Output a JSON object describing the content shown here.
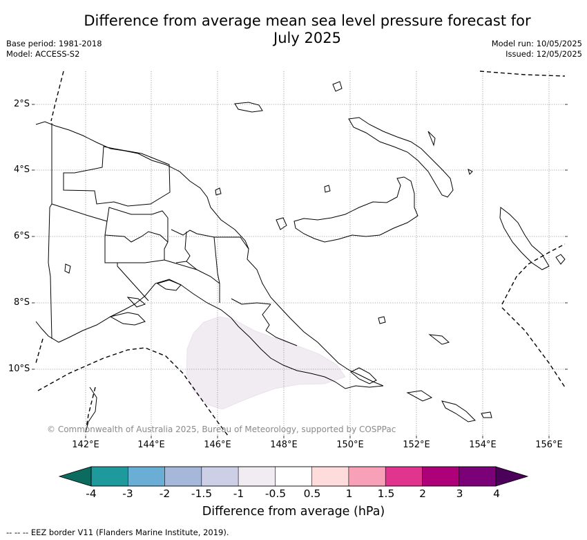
{
  "title": "Difference from average mean sea level pressure forecast for July 2025",
  "meta_left": {
    "base_period": "Base period: 1981-2018",
    "model": "Model: ACCESS-S2"
  },
  "meta_right": {
    "model_run": "Model run: 10/05/2025",
    "issued": "Issued: 12/05/2025"
  },
  "copyright": "© Commonwealth of Australia 2025, Bureau of Meteorology, supported by COSPPac",
  "map": {
    "lat_labels": [
      "2°S",
      "4°S",
      "6°S",
      "8°S",
      "10°S"
    ],
    "lon_labels": [
      "142°E",
      "144°E",
      "146°E",
      "148°E",
      "150°E",
      "152°E",
      "154°E",
      "156°E"
    ],
    "anomaly_region_value": "-1 to -0.5",
    "anomaly_fill_color": "#f1ecf2"
  },
  "colorbar": {
    "label": "Difference from average (hPa)",
    "ticks": [
      "-4",
      "-3",
      "-2",
      "-1.5",
      "-1",
      "-0.5",
      "0.5",
      "1",
      "1.5",
      "2",
      "3",
      "4"
    ],
    "colors": [
      "#0a6b5e",
      "#1e9a9c",
      "#6aaed6",
      "#a6b8da",
      "#cdcfe6",
      "#f1ecf2",
      "#ffffff",
      "#ffdcdc",
      "#f8a0b8",
      "#e0348f",
      "#ad0079",
      "#7a0177",
      "#4b0059"
    ]
  },
  "eez_note": "-- -- -- EEZ border V11 (Flanders Marine Institute, 2019)."
}
